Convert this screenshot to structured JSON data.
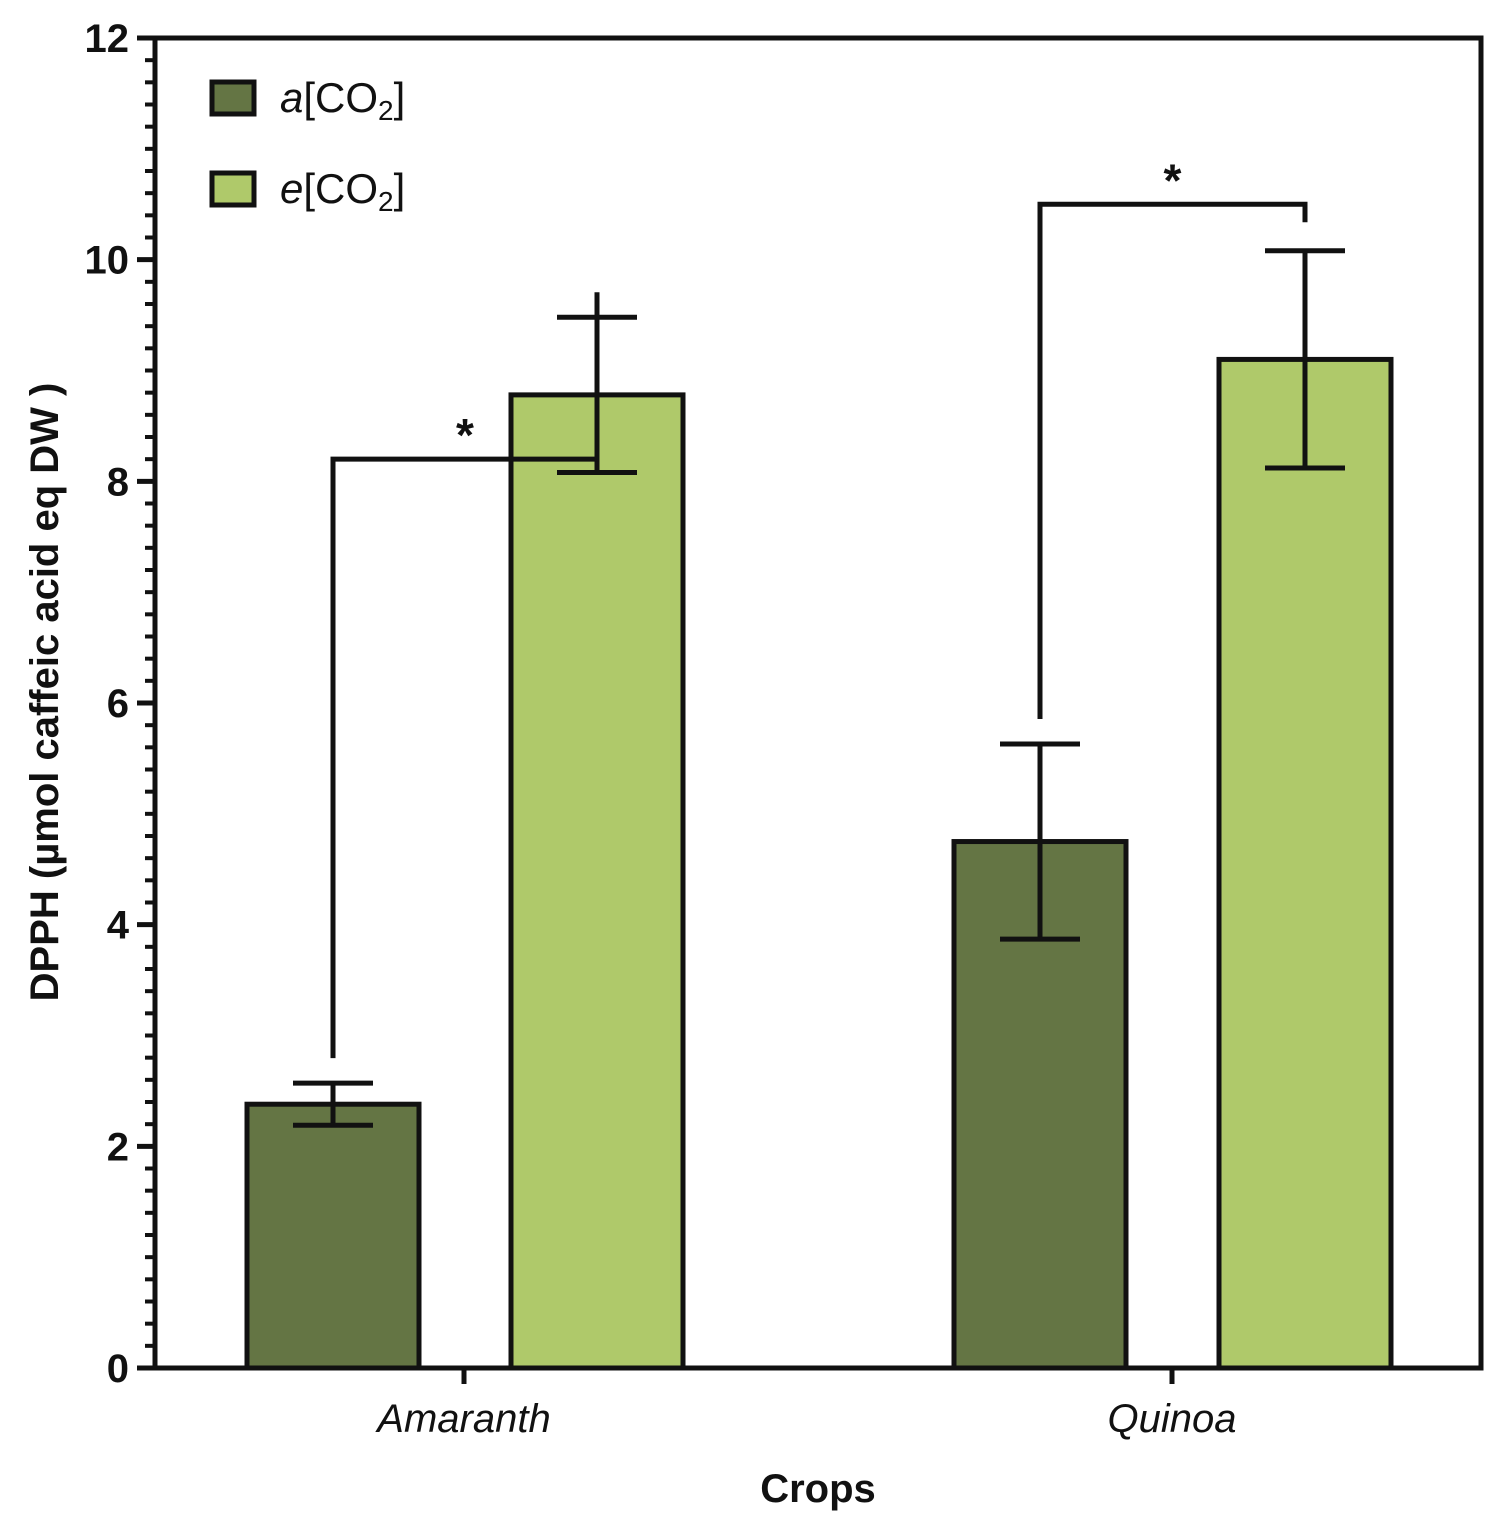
{
  "chart_data": {
    "type": "bar",
    "title": "",
    "xlabel": "Crops",
    "ylabel": "DPPH (µmol caffeic acid eq DW )",
    "ylim": [
      0,
      12
    ],
    "yticks": [
      "0",
      "2",
      "4",
      "6",
      "8",
      "10",
      "12"
    ],
    "categories": [
      "Amaranth",
      "Quinoa"
    ],
    "series": [
      {
        "name": "a[CO2]",
        "prefix": "a",
        "label": "CO",
        "sub": "2",
        "color": "#647544",
        "values": [
          2.38,
          4.75
        ],
        "errors": [
          0.19,
          0.88
        ]
      },
      {
        "name": "e[CO2]",
        "prefix": "e",
        "label": "CO",
        "sub": "2",
        "color": "#afc96a",
        "values": [
          8.78,
          9.1
        ],
        "errors": [
          0.7,
          0.98
        ]
      }
    ],
    "annotations": [
      {
        "category": "Amaranth",
        "text": "*",
        "bracket_y": 8.2
      },
      {
        "category": "Quinoa",
        "text": "*",
        "bracket_y": 10.5
      }
    ],
    "legend": "top-left"
  }
}
